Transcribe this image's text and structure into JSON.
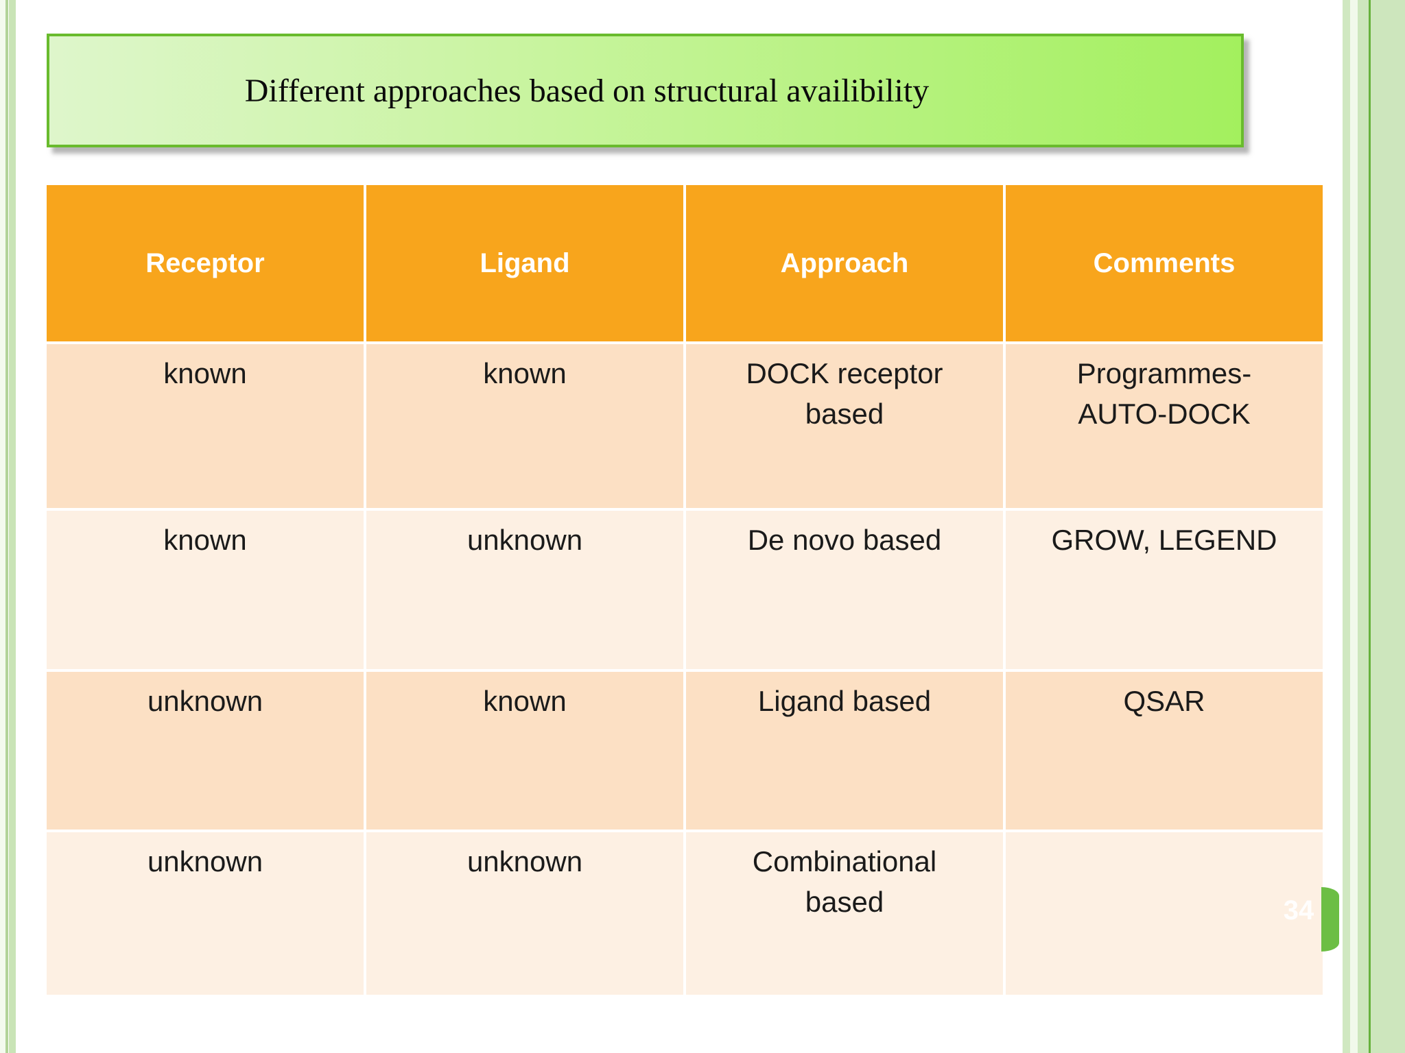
{
  "slide": {
    "title": "Different approaches based on structural availibility",
    "page_number": "34"
  },
  "table": {
    "headers": [
      "Receptor",
      "Ligand",
      "Approach",
      "Comments"
    ],
    "rows": [
      [
        "known",
        "known",
        "DOCK receptor\nbased",
        "Programmes-\nAUTO-DOCK"
      ],
      [
        "known",
        "unknown",
        "De novo based",
        "GROW, LEGEND"
      ],
      [
        "unknown",
        "known",
        "Ligand based",
        "QSAR"
      ],
      [
        "unknown",
        "unknown",
        "Combinational\nbased",
        ""
      ]
    ]
  },
  "colors": {
    "header_bg": "#F8A51C",
    "row_odd_bg": "#FCE0C4",
    "row_even_bg": "#FDF0E3",
    "title_gradient_start": "#DEF6CB",
    "title_gradient_end": "#A3F05E",
    "title_border": "#69BB2D",
    "accent_green": "#6CBE44",
    "edge_stripe_green": "#C9E4B6"
  }
}
